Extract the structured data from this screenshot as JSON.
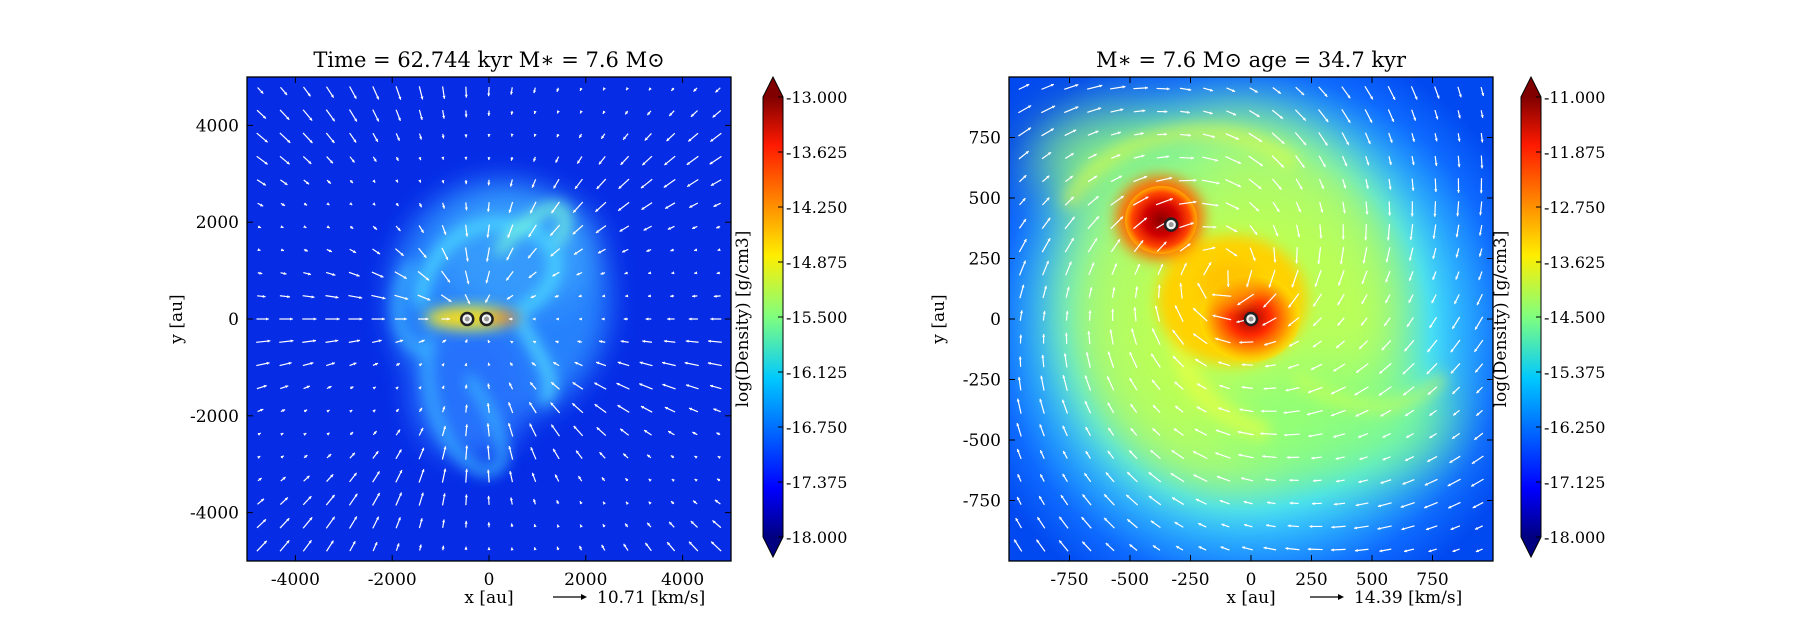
{
  "chart_data": [
    {
      "type": "heatmap",
      "title": "Time = 62.744 kyr    M$_*$ = 7.6 M$_\\odot$",
      "title_display": "Time = 62.744 kyr    M∗ = 7.6 M⊙",
      "xlabel": "x [au]",
      "ylabel": "y [au]",
      "xlim": [
        -5000,
        5000
      ],
      "ylim": [
        -5000,
        5000
      ],
      "xticks": [
        -4000,
        -2000,
        0,
        2000,
        4000
      ],
      "yticks": [
        -4000,
        -2000,
        0,
        2000,
        4000
      ],
      "colorbar": {
        "label": "log(Density) [g/cm3]",
        "range": [
          -18.0,
          -13.0
        ],
        "ticks": [
          "-13.000",
          "-13.625",
          "-14.250",
          "-14.875",
          "-15.500",
          "-16.125",
          "-16.750",
          "-17.375",
          "-18.000"
        ],
        "colormap": "jet"
      },
      "vector_key": {
        "label": "10.71 [km/s]"
      },
      "sinks": [
        {
          "x": -450,
          "y": 0
        },
        {
          "x": -50,
          "y": 0
        }
      ],
      "structures": [
        {
          "x": -200,
          "y": 0,
          "value": -14.9
        },
        {
          "x": 500,
          "y": -500,
          "value": -15.9
        },
        {
          "x": 900,
          "y": 1200,
          "value": -16.0
        },
        {
          "x": -500,
          "y": 300,
          "value": -16.1
        },
        {
          "x": -800,
          "y": -1500,
          "value": -16.4
        }
      ]
    },
    {
      "type": "heatmap",
      "title": "M$_*$ = 7.6 M$_\\odot$         age = 34.7 kyr",
      "title_display": "M∗ = 7.6 M⊙          age = 34.7 kyr",
      "xlabel": "x [au]",
      "ylabel": "y [au]",
      "xlim": [
        -1000,
        1000
      ],
      "ylim": [
        -1000,
        1000
      ],
      "xticks": [
        -750,
        -500,
        -250,
        0,
        250,
        500,
        750
      ],
      "yticks": [
        -750,
        -500,
        -250,
        0,
        250,
        500,
        750
      ],
      "colorbar": {
        "label": "log(Density) [g/cm3]",
        "range": [
          -18.0,
          -11.0
        ],
        "ticks": [
          "-11.000",
          "-11.875",
          "-12.750",
          "-13.625",
          "-14.500",
          "-15.375",
          "-16.250",
          "-17.125",
          "-18.000"
        ],
        "colormap": "jet"
      },
      "vector_key": {
        "label": "14.39 [km/s]"
      },
      "sinks": [
        {
          "x": -330,
          "y": 390
        },
        {
          "x": 0,
          "y": 0
        }
      ],
      "structures": [
        {
          "x": -330,
          "y": 400,
          "value": -11.7
        },
        {
          "x": 0,
          "y": 0,
          "value": -12.0
        },
        {
          "x": -80,
          "y": 100,
          "value": -13.3
        },
        {
          "x": 0,
          "y": 0,
          "value": -14.6
        }
      ]
    }
  ]
}
